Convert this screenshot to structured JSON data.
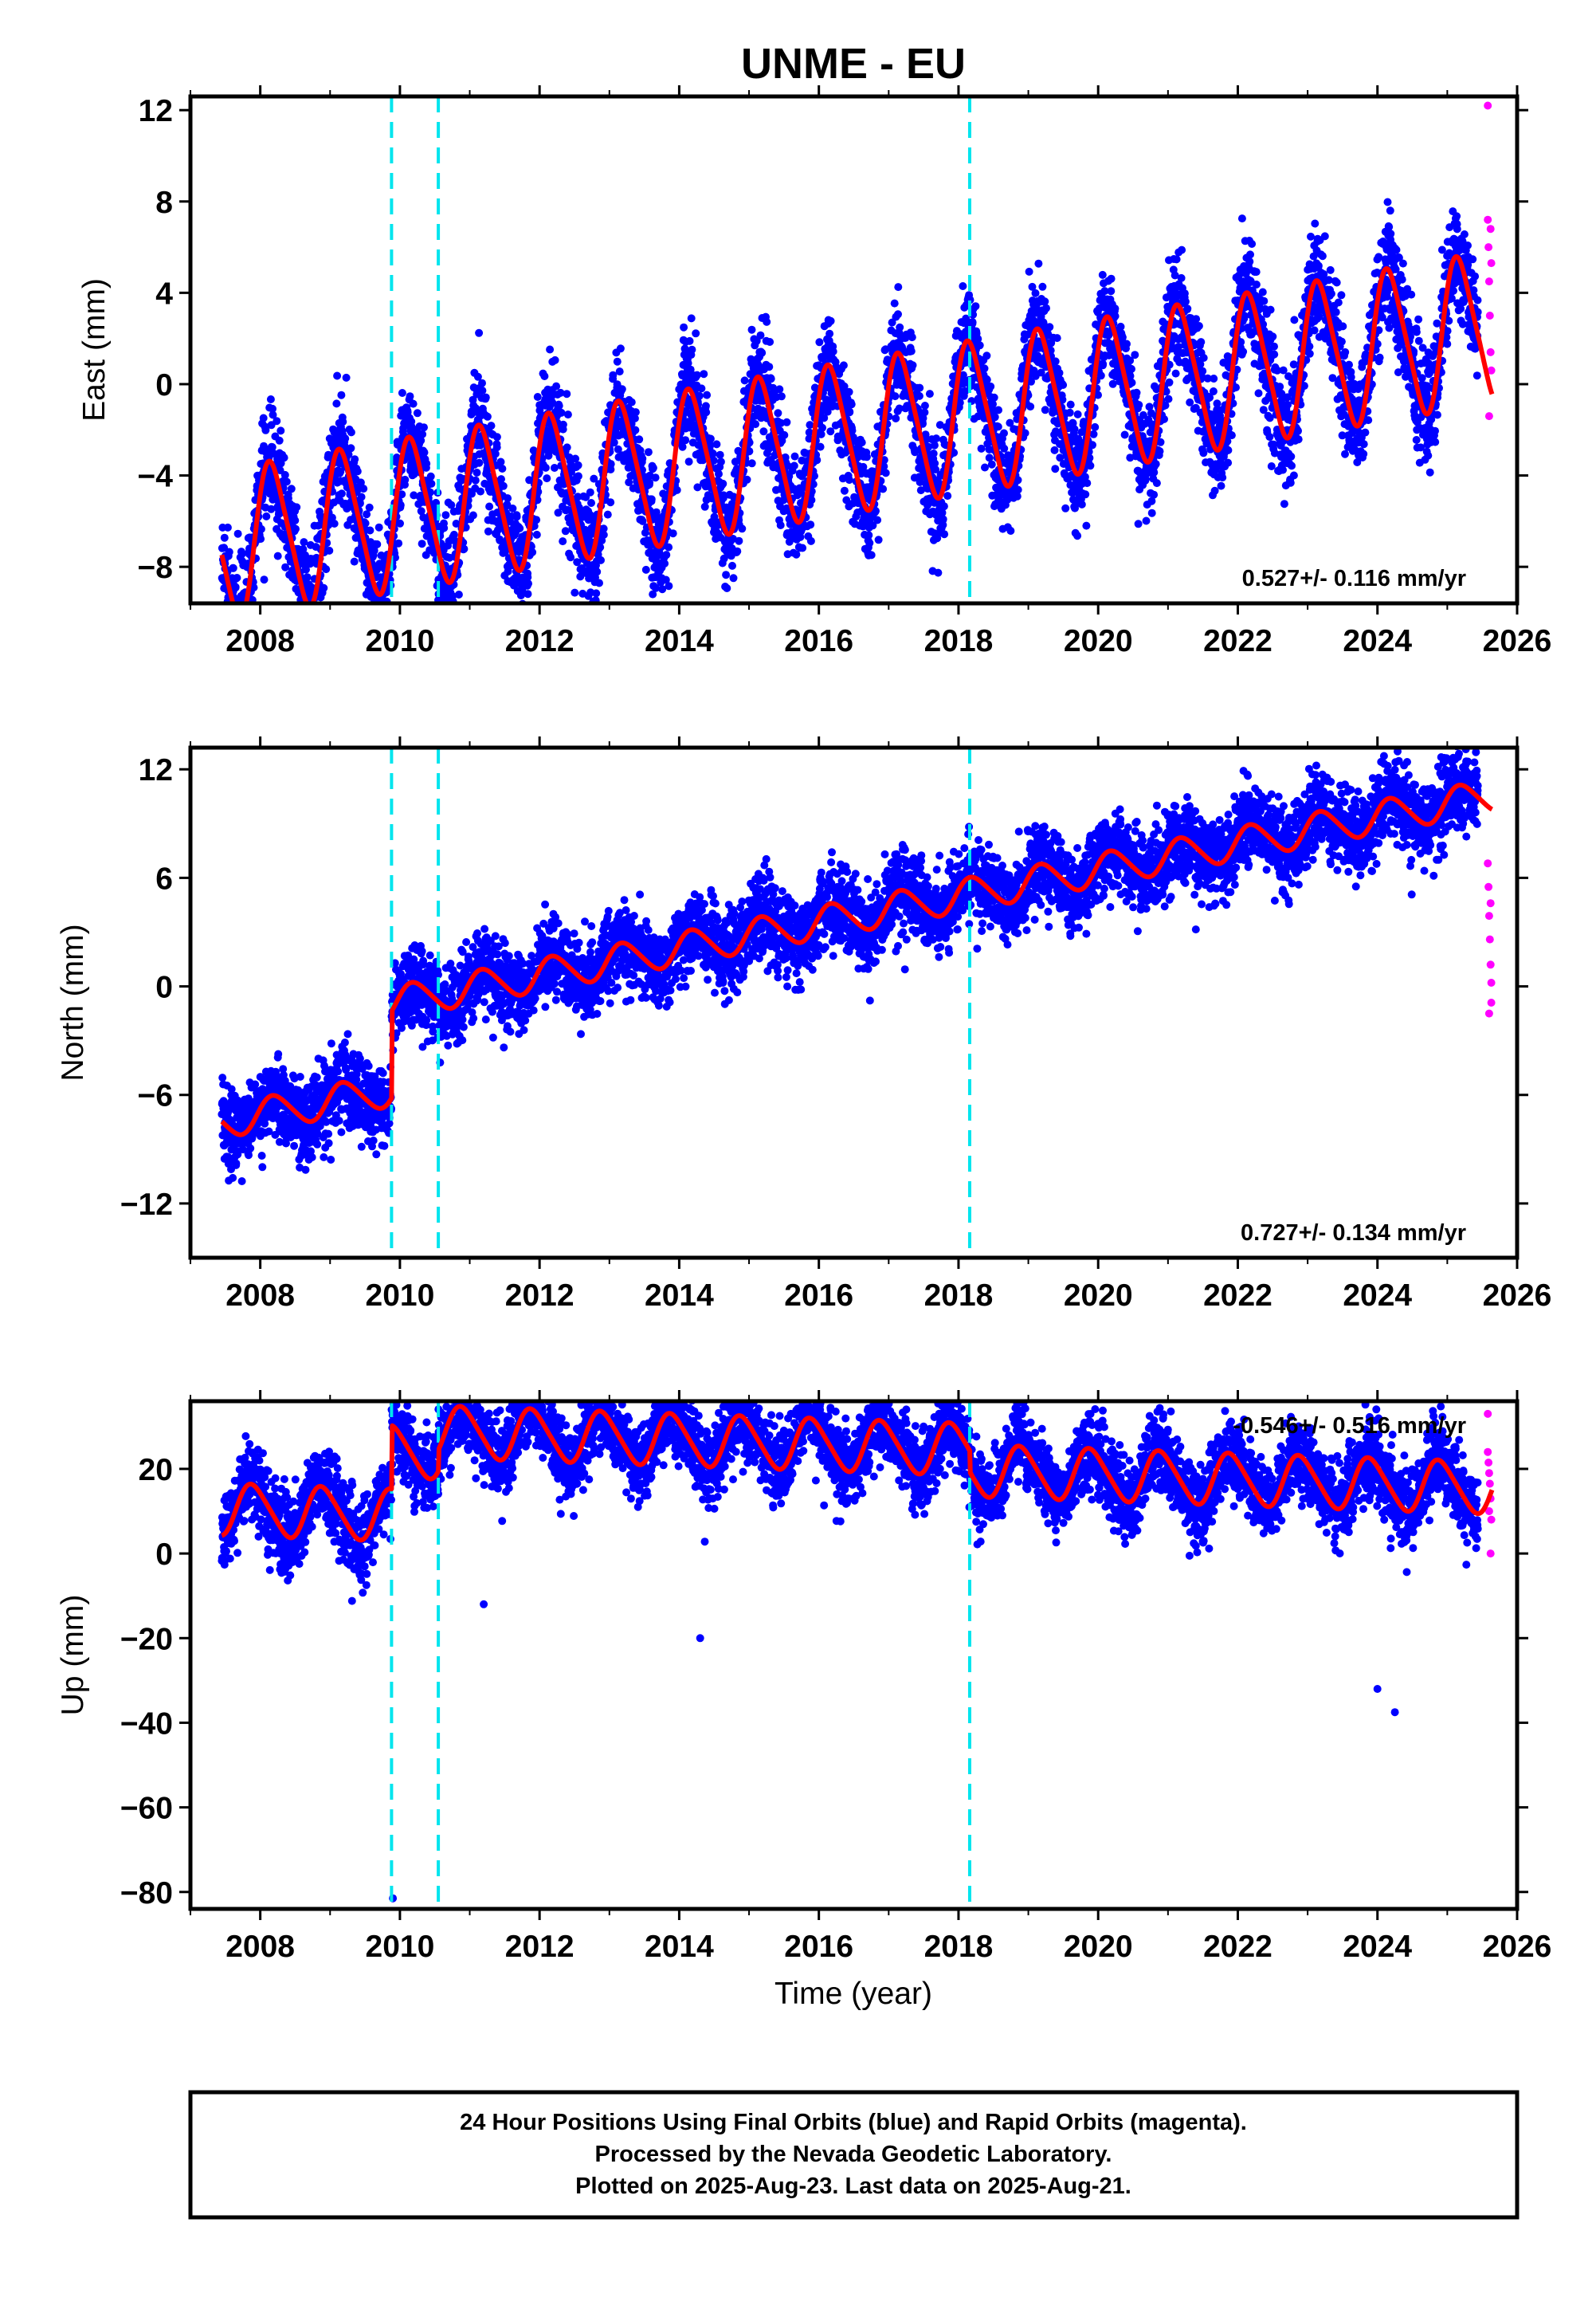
{
  "title": "UNME - EU",
  "xlabel": "Time (year)",
  "colors": {
    "final": "#0000ff",
    "rapid": "#ff00ff",
    "model": "#ff0000",
    "offset": "#00e5ee"
  },
  "footer": [
    "24 Hour Positions Using Final Orbits (blue) and Rapid Orbits (magenta).",
    "Processed by the Nevada Geodetic Laboratory.",
    "Plotted on 2025-Aug-23. Last data on 2025-Aug-21."
  ],
  "chart_data": [
    {
      "type": "scatter",
      "ylabel": "East (mm)",
      "rate_label": "0.527+/- 0.116 mm/yr",
      "rate_position": "bottom-right",
      "xlim": [
        2007.0,
        2026.0
      ],
      "ylim": [
        -9.6,
        12.6
      ],
      "xticks": [
        2008,
        2010,
        2012,
        2014,
        2016,
        2018,
        2020,
        2022,
        2024,
        2026
      ],
      "yticks": [
        -8,
        -4,
        0,
        4,
        8,
        12
      ],
      "offset_lines_x": [
        2009.88,
        2010.55,
        2018.16
      ],
      "model": {
        "data_start": 2007.45,
        "data_end": 2025.64,
        "ref_year": 2016.5,
        "intercept": -2.3,
        "rate_mm_yr": 0.527,
        "annual_amp": 3.2,
        "annual_phase": 0.5,
        "semiannual_amp": 0.5,
        "offsets": [],
        "scatter_sigma": 1.2
      },
      "final_points_note": "dense daily series 2007.45-2025.45",
      "rapid": [
        [
          2025.58,
          12.2
        ],
        [
          2025.58,
          7.2
        ],
        [
          2025.59,
          6.0
        ],
        [
          2025.6,
          4.5
        ],
        [
          2025.61,
          3.0
        ],
        [
          2025.62,
          1.4
        ],
        [
          2025.63,
          0.6
        ],
        [
          2025.6,
          -1.4
        ],
        [
          2025.63,
          5.3
        ],
        [
          2025.62,
          6.8
        ]
      ]
    },
    {
      "type": "scatter",
      "ylabel": "North (mm)",
      "rate_label": "0.727+/- 0.134 mm/yr",
      "rate_position": "bottom-right",
      "xlim": [
        2007.0,
        2026.0
      ],
      "ylim": [
        -15.0,
        13.2
      ],
      "xticks": [
        2008,
        2010,
        2012,
        2014,
        2016,
        2018,
        2020,
        2022,
        2024,
        2026
      ],
      "yticks": [
        -12,
        -6,
        0,
        6,
        12
      ],
      "offset_lines_x": [
        2009.88,
        2010.55,
        2018.16
      ],
      "model": {
        "data_start": 2007.45,
        "data_end": 2025.64,
        "ref_year": 2016.5,
        "intercept": -0.9,
        "rate_mm_yr": 0.727,
        "annual_amp": 0.9,
        "annual_phase": 0.3,
        "semiannual_amp": 0.1,
        "offsets": [
          [
            2009.88,
            4.8
          ]
        ],
        "scatter_sigma": 1.1
      },
      "final_points_note": "dense daily series 2007.45-2025.45",
      "rapid": [
        [
          2025.58,
          6.8
        ],
        [
          2025.59,
          5.5
        ],
        [
          2025.6,
          3.9
        ],
        [
          2025.61,
          2.6
        ],
        [
          2025.62,
          1.2
        ],
        [
          2025.63,
          0.2
        ],
        [
          2025.6,
          -1.5
        ],
        [
          2025.62,
          4.6
        ],
        [
          2025.63,
          -0.9
        ]
      ]
    },
    {
      "type": "scatter",
      "ylabel": "Up (mm)",
      "rate_label": "-0.546+/- 0.516 mm/yr",
      "rate_position": "top-right",
      "xlim": [
        2007.0,
        2026.0
      ],
      "ylim": [
        -84.0,
        36.0
      ],
      "xticks": [
        2008,
        2010,
        2012,
        2014,
        2016,
        2018,
        2020,
        2022,
        2024,
        2026
      ],
      "yticks": [
        -80,
        -60,
        -40,
        -20,
        0,
        20
      ],
      "offset_lines_x": [
        2009.88,
        2010.55,
        2018.16
      ],
      "model": {
        "data_start": 2007.45,
        "data_end": 2025.64,
        "ref_year": 2016.5,
        "intercept": 5.5,
        "rate_mm_yr": -0.546,
        "annual_amp": 6.0,
        "annual_phase": 2.2,
        "semiannual_amp": 0.8,
        "offsets": [
          [
            2009.88,
            15.0
          ],
          [
            2010.55,
            5.0
          ],
          [
            2018.16,
            -5.0
          ]
        ],
        "scatter_sigma": 4.5
      },
      "final_points_note": "dense daily series 2007.45-2025.45",
      "outliers": [
        [
          2009.9,
          -81.5
        ],
        [
          2011.2,
          -12.0
        ],
        [
          2014.3,
          -20.0
        ],
        [
          2015.6,
          33.0
        ],
        [
          2016.8,
          33.0
        ],
        [
          2017.5,
          30.0
        ],
        [
          2024.25,
          -37.5
        ],
        [
          2024.0,
          -32.0
        ]
      ],
      "rapid": [
        [
          2025.58,
          33.0
        ],
        [
          2025.58,
          24.0
        ],
        [
          2025.59,
          21.5
        ],
        [
          2025.6,
          19.0
        ],
        [
          2025.61,
          16.5
        ],
        [
          2025.62,
          13.0
        ],
        [
          2025.6,
          10.0
        ],
        [
          2025.63,
          8.0
        ],
        [
          2025.62,
          0.0
        ]
      ]
    }
  ]
}
